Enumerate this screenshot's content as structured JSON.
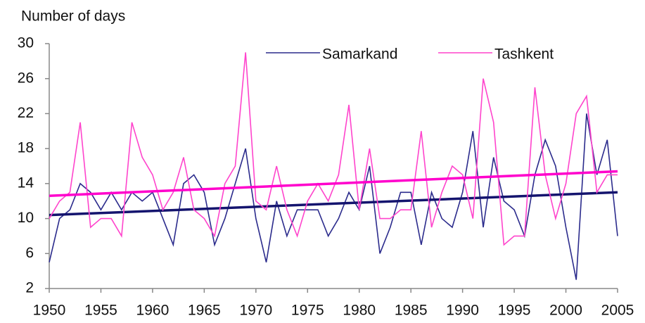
{
  "chart_data": {
    "type": "line",
    "ylabel": "Number of days",
    "x": [
      1950,
      1951,
      1952,
      1953,
      1954,
      1955,
      1956,
      1957,
      1958,
      1959,
      1960,
      1961,
      1962,
      1963,
      1964,
      1965,
      1966,
      1967,
      1968,
      1969,
      1970,
      1971,
      1972,
      1973,
      1974,
      1975,
      1976,
      1977,
      1978,
      1979,
      1980,
      1981,
      1982,
      1983,
      1984,
      1985,
      1986,
      1987,
      1988,
      1989,
      1990,
      1991,
      1992,
      1993,
      1994,
      1995,
      1996,
      1997,
      1998,
      1999,
      2000,
      2001,
      2002,
      2003,
      2004,
      2005
    ],
    "series": [
      {
        "name": "Samarkand",
        "color": "#2b2b8c",
        "trend_color": "#14146e",
        "trend": [
          10.4,
          13
        ],
        "values": [
          5,
          10,
          11,
          14,
          13,
          11,
          13,
          11,
          13,
          12,
          13,
          10,
          7,
          14,
          15,
          13,
          7,
          10,
          14,
          18,
          10,
          5,
          12,
          8,
          11,
          11,
          11,
          8,
          10,
          13,
          11,
          16,
          6,
          9,
          13,
          13,
          7,
          13,
          10,
          9,
          13,
          20,
          9,
          17,
          12,
          11,
          8,
          15,
          19,
          16,
          9,
          3,
          22,
          15,
          19,
          8
        ]
      },
      {
        "name": "Tashkent",
        "color": "#ff44cc",
        "trend_color": "#ff00cc",
        "trend": [
          12.6,
          15.4
        ],
        "values": [
          10,
          12,
          13,
          21,
          9,
          10,
          10,
          8,
          21,
          17,
          15,
          11,
          13,
          17,
          11,
          10,
          8,
          14,
          16,
          29,
          12,
          11,
          16,
          11,
          8,
          12,
          14,
          12,
          15,
          23,
          11,
          18,
          10,
          10,
          11,
          11,
          20,
          9,
          13,
          16,
          15,
          10,
          26,
          21,
          7,
          8,
          8,
          25,
          15,
          10,
          14,
          22,
          24,
          13,
          15,
          15
        ]
      }
    ],
    "xlim": [
      1950,
      2005
    ],
    "xticks": [
      1950,
      1955,
      1960,
      1965,
      1970,
      1975,
      1980,
      1985,
      1990,
      1995,
      2000,
      2005
    ],
    "ylim": [
      2,
      30
    ],
    "yticks": [
      2,
      6,
      10,
      14,
      18,
      22,
      26,
      30
    ],
    "legend": "top"
  }
}
